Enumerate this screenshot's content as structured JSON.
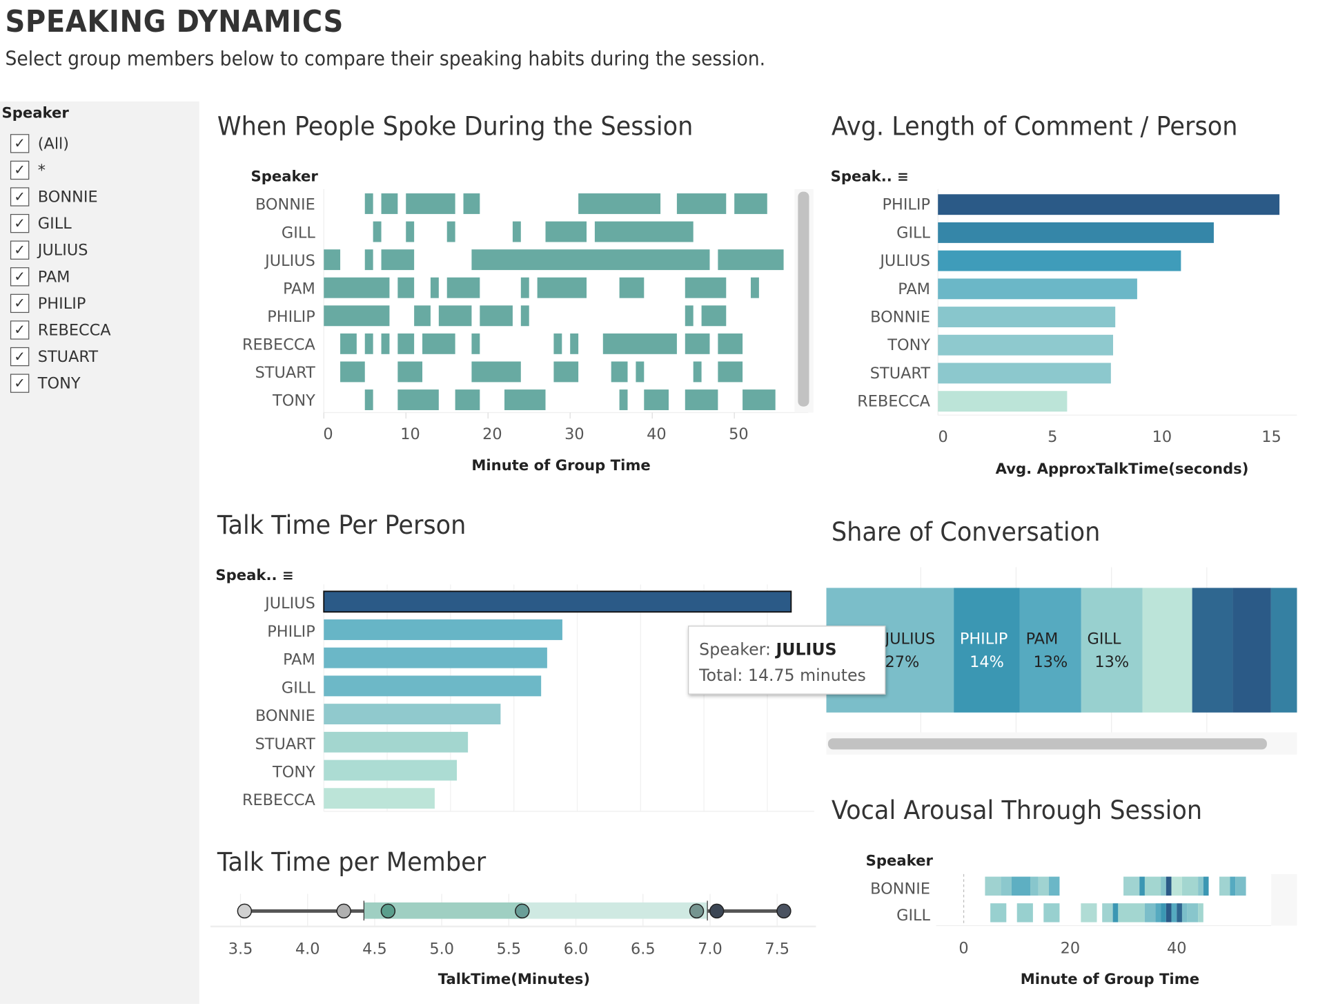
{
  "header": {
    "title": "SPEAKING DYNAMICS",
    "subtitle": "Select group members below to compare their speaking habits during the session."
  },
  "filter": {
    "title": "Speaker",
    "items": [
      {
        "label": "(All)",
        "checked": true
      },
      {
        "label": "*",
        "checked": true
      },
      {
        "label": "BONNIE",
        "checked": true
      },
      {
        "label": "GILL",
        "checked": true
      },
      {
        "label": "JULIUS",
        "checked": true
      },
      {
        "label": "PAM",
        "checked": true
      },
      {
        "label": "PHILIP",
        "checked": true
      },
      {
        "label": "REBECCA",
        "checked": true
      },
      {
        "label": "STUART",
        "checked": true
      },
      {
        "label": "TONY",
        "checked": true
      }
    ]
  },
  "icons": {
    "checkbox": "checkmark-icon",
    "sort": "sort-descending-icon"
  },
  "colors": {
    "gantt": "#68aaa2",
    "dark": "#2b5a87",
    "accent": "#3b97b3"
  },
  "tooltip": {
    "speaker_label": "Speaker: ",
    "speaker": "JULIUS",
    "total": "Total: 14.75 minutes"
  },
  "chart_data": [
    {
      "id": "when",
      "type": "gantt",
      "title": "When People Spoke During the Session",
      "row_header": "Speaker",
      "xlabel": "Minute of Group Time",
      "xlim": [
        0,
        59
      ],
      "xticks": [
        0,
        10,
        20,
        30,
        40,
        50
      ],
      "rows": [
        {
          "name": "BONNIE",
          "segments": [
            [
              5,
              6
            ],
            [
              7,
              9
            ],
            [
              10,
              16
            ],
            [
              17,
              19
            ],
            [
              31,
              41
            ],
            [
              43,
              49
            ],
            [
              50,
              54
            ]
          ]
        },
        {
          "name": "GILL",
          "segments": [
            [
              6,
              7
            ],
            [
              10,
              11
            ],
            [
              15,
              16
            ],
            [
              23,
              24
            ],
            [
              27,
              32
            ],
            [
              33,
              45
            ]
          ]
        },
        {
          "name": "JULIUS",
          "segments": [
            [
              0,
              2
            ],
            [
              5,
              6
            ],
            [
              7,
              11
            ],
            [
              18,
              47
            ],
            [
              48,
              56
            ]
          ]
        },
        {
          "name": "PAM",
          "segments": [
            [
              0,
              8
            ],
            [
              9,
              11
            ],
            [
              13,
              14
            ],
            [
              15,
              19
            ],
            [
              24,
              25
            ],
            [
              26,
              32
            ],
            [
              36,
              39
            ],
            [
              44,
              49
            ],
            [
              52,
              53
            ]
          ]
        },
        {
          "name": "PHILIP",
          "segments": [
            [
              0,
              8
            ],
            [
              11,
              13
            ],
            [
              14,
              18
            ],
            [
              19,
              23
            ],
            [
              24,
              25
            ],
            [
              44,
              45
            ],
            [
              46,
              49
            ]
          ]
        },
        {
          "name": "REBECCA",
          "segments": [
            [
              2,
              4
            ],
            [
              5,
              6
            ],
            [
              7,
              8
            ],
            [
              9,
              11
            ],
            [
              12,
              16
            ],
            [
              18,
              19
            ],
            [
              28,
              29
            ],
            [
              30,
              31
            ],
            [
              34,
              43
            ],
            [
              44,
              47
            ],
            [
              48,
              51
            ]
          ]
        },
        {
          "name": "STUART",
          "segments": [
            [
              2,
              5
            ],
            [
              9,
              12
            ],
            [
              18,
              24
            ],
            [
              28,
              31
            ],
            [
              35,
              37
            ],
            [
              38,
              39
            ],
            [
              45,
              46
            ],
            [
              48,
              51
            ]
          ]
        },
        {
          "name": "TONY",
          "segments": [
            [
              5,
              6
            ],
            [
              9,
              14
            ],
            [
              16,
              19
            ],
            [
              22,
              27
            ],
            [
              36,
              37
            ],
            [
              39,
              42
            ],
            [
              44,
              48
            ],
            [
              51,
              55
            ]
          ]
        }
      ]
    },
    {
      "id": "avg",
      "type": "bar",
      "title": "Avg. Length of Comment / Person",
      "row_header": "Speak..",
      "xlabel": "Avg. ApproxTalkTime(seconds)",
      "xlim": [
        0,
        16.4
      ],
      "xticks": [
        0,
        5,
        10,
        15
      ],
      "categories": [
        "PHILIP",
        "GILL",
        "JULIUS",
        "PAM",
        "BONNIE",
        "TONY",
        "STUART",
        "REBECCA"
      ],
      "values": [
        15.6,
        12.6,
        11.1,
        9.1,
        8.1,
        8.0,
        7.9,
        5.9
      ],
      "bar_colors": [
        "#2b5a87",
        "#3586a8",
        "#3f9cba",
        "#6bb7c7",
        "#88c6cc",
        "#8ec9ce",
        "#8cc8cd",
        "#bce4d8"
      ]
    },
    {
      "id": "talk",
      "type": "bar",
      "title": "Talk Time Per Person",
      "row_header": "Speak..",
      "xlim": [
        0,
        15.4
      ],
      "categories": [
        "JULIUS",
        "PHILIP",
        "PAM",
        "GILL",
        "BONNIE",
        "STUART",
        "TONY",
        "REBECCA"
      ],
      "values": [
        14.75,
        7.53,
        7.05,
        6.86,
        5.58,
        4.55,
        4.2,
        3.5
      ],
      "bar_colors": [
        "#2b5a87",
        "#67b5c6",
        "#6bb7c7",
        "#6db8c7",
        "#90c9cd",
        "#a3d6cf",
        "#acdcd3",
        "#bce4d8"
      ],
      "selected": "JULIUS"
    },
    {
      "id": "share",
      "type": "stacked-bar",
      "title": "Share of Conversation",
      "segments": [
        {
          "name": "JULIUS",
          "label": "JULIUS",
          "pct": "27%",
          "value": 27,
          "color": "#7bbec9",
          "label_color": "#222"
        },
        {
          "name": "PHILIP",
          "pct": "14%",
          "value": 14,
          "color": "#3b97b3",
          "label_color": "#fff"
        },
        {
          "name": "PAM",
          "pct": "13%",
          "value": 13,
          "color": "#56aac0",
          "label_color": "#222"
        },
        {
          "name": "GILL",
          "pct": "13%",
          "value": 13,
          "color": "#98d0cf",
          "label_color": "#222"
        },
        {
          "name": "",
          "value": 10.5,
          "color": "#bce4d9"
        },
        {
          "name": "",
          "value": 8.6,
          "color": "#2f6790"
        },
        {
          "name": "",
          "value": 8.1,
          "color": "#2b5a87"
        },
        {
          "name": "",
          "value": 5.5,
          "color": "#3580a2"
        }
      ]
    },
    {
      "id": "member",
      "type": "dot-range",
      "title": "Talk Time per Member",
      "xlabel": "TalkTime(Minutes)",
      "xlim": [
        3.4,
        7.65
      ],
      "xticks": [
        "3.5",
        "4.0",
        "4.5",
        "5.0",
        "5.5",
        "6.0",
        "6.5",
        "7.0",
        "7.5"
      ],
      "band": [
        4.42,
        5.6,
        6.98
      ],
      "points": [
        {
          "v": 3.53,
          "c": "#d0d0d0"
        },
        {
          "v": 4.27,
          "c": "#b0b0b0"
        },
        {
          "v": 4.6,
          "c": "#5a9e8c"
        },
        {
          "v": 5.6,
          "c": "#6a9e98"
        },
        {
          "v": 6.9,
          "c": "#759590"
        },
        {
          "v": 7.05,
          "c": "#3c4654"
        },
        {
          "v": 7.55,
          "c": "#4a5260"
        }
      ]
    },
    {
      "id": "vocal",
      "type": "heat-strip",
      "title": "Vocal Arousal Through Session",
      "row_header": "Speaker",
      "xlabel": "Minute of Group Time",
      "xlim": [
        -4,
        60
      ],
      "xticks": [
        0,
        20,
        40
      ],
      "rows": [
        {
          "name": "BONNIE",
          "cells": [
            [
              4,
              7,
              "#9fd2d0"
            ],
            [
              7,
              9,
              "#8cc8cd"
            ],
            [
              9,
              12.5,
              "#5eafc2"
            ],
            [
              12.5,
              14,
              "#88c6cc"
            ],
            [
              14,
              16,
              "#a0d3d1"
            ],
            [
              16,
              18,
              "#6bb7c7"
            ],
            [
              30,
              33,
              "#a0d3d1"
            ],
            [
              33,
              34,
              "#3b97b3"
            ],
            [
              34,
              37,
              "#a3d6d0"
            ],
            [
              37,
              38,
              "#86c5cb"
            ],
            [
              38,
              39,
              "#2b5a87"
            ],
            [
              39,
              41,
              "#bce4d9"
            ],
            [
              41,
              44,
              "#a3d6d0"
            ],
            [
              44,
              45,
              "#88c6cc"
            ],
            [
              45,
              46,
              "#3b97b3"
            ],
            [
              48,
              50,
              "#a0d3d1"
            ],
            [
              50,
              51,
              "#56aac0"
            ],
            [
              51,
              53,
              "#7bbec9"
            ]
          ]
        },
        {
          "name": "GILL",
          "cells": [
            [
              5,
              8,
              "#98d0cf"
            ],
            [
              10,
              13,
              "#98d0cf"
            ],
            [
              15,
              18,
              "#98d0cf"
            ],
            [
              22,
              25,
              "#b0dcd5"
            ],
            [
              26,
              28,
              "#a0d3d1"
            ],
            [
              28,
              29,
              "#3b97b3"
            ],
            [
              29,
              34,
              "#a3d6d0"
            ],
            [
              34,
              36,
              "#7bbec9"
            ],
            [
              36,
              37,
              "#56aac0"
            ],
            [
              37,
              38,
              "#3b97b3"
            ],
            [
              38,
              39,
              "#2b5a87"
            ],
            [
              39,
              40,
              "#56aac0"
            ],
            [
              40,
              41,
              "#2f6790"
            ],
            [
              41,
              42,
              "#7bbec9"
            ],
            [
              42,
              44,
              "#88c6cc"
            ],
            [
              44,
              45,
              "#a3d6d0"
            ]
          ]
        }
      ]
    }
  ]
}
